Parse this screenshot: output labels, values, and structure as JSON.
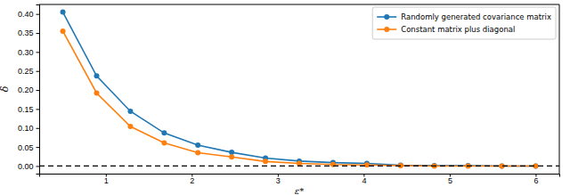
{
  "chart_data": {
    "type": "line",
    "x_label": "ε*",
    "y_label": "δ",
    "x": [
      0.5,
      0.893,
      1.286,
      1.679,
      2.071,
      2.464,
      2.857,
      3.25,
      3.643,
      4.036,
      4.429,
      4.821,
      5.214,
      5.607,
      6.0
    ],
    "series": [
      {
        "name": "Randomly generated covariance matrix",
        "color": "#1f77b4",
        "marker": "circle",
        "line_style": "solid",
        "values": [
          0.405,
          0.237,
          0.144,
          0.087,
          0.055,
          0.036,
          0.021,
          0.013,
          0.009,
          0.007,
          0.002,
          0.001,
          0.001,
          0.0,
          0.0
        ]
      },
      {
        "name": "Constant matrix plus diagonal",
        "color": "#ff7f0e",
        "marker": "circle",
        "line_style": "solid",
        "values": [
          0.355,
          0.192,
          0.104,
          0.061,
          0.035,
          0.024,
          0.012,
          0.007,
          0.004,
          0.003,
          0.001,
          0.0,
          0.0,
          0.0,
          0.0
        ]
      }
    ],
    "reference_lines": [
      {
        "value": 0,
        "color": "#000000",
        "line_style": "dashed"
      }
    ],
    "xlim": [
      0.225,
      6.275
    ],
    "ylim": [
      -0.02,
      0.425
    ],
    "xticks": [
      1,
      2,
      3,
      4,
      5,
      6
    ],
    "yticks": [
      {
        "value": 0,
        "label": "0.00"
      },
      {
        "value": 0.05,
        "label": "0.05"
      },
      {
        "value": 0.1,
        "label": "0.10"
      },
      {
        "value": 0.15,
        "label": "0.15"
      },
      {
        "value": 0.2,
        "label": "0.20"
      },
      {
        "value": 0.25,
        "label": "0.25"
      },
      {
        "value": 0.3,
        "label": "0.30"
      },
      {
        "value": 0.35,
        "label": "0.35"
      },
      {
        "value": 0.4,
        "label": "0.40"
      }
    ],
    "grid": false,
    "legend": "upper right"
  }
}
